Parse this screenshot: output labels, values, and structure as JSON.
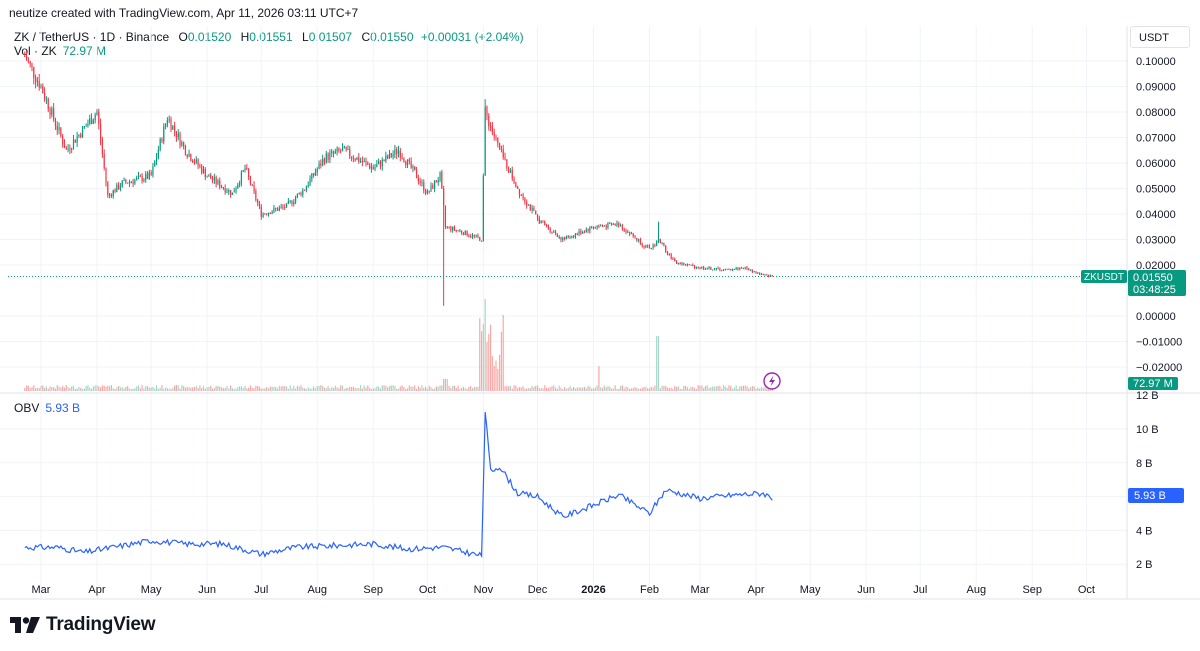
{
  "header": {
    "attribution": "neutize created with TradingView.com, Apr 11, 2026 03:11 UTC+7"
  },
  "legend": {
    "symbol": "ZK / TetherUS · 1D · Binance",
    "o_label": "O",
    "o_value": "0.01520",
    "h_label": "H",
    "h_value": "0.01551",
    "l_label": "L",
    "l_value": "0.01507",
    "c_label": "C",
    "c_value": "0.01550",
    "change": "+0.00031 (+2.04%)",
    "vol_label": "Vol · ZK",
    "vol_value": "72.97 M"
  },
  "obv": {
    "label": "OBV",
    "value": "5.93 B",
    "badge": "5.93 B"
  },
  "price_axis": {
    "currency": "USDT",
    "labels": [
      "0.10000",
      "0.09000",
      "0.08000",
      "0.07000",
      "0.06000",
      "0.05000",
      "0.04000",
      "0.03000",
      "0.02000",
      "0.00000",
      "−0.01000",
      "−0.02000"
    ],
    "ticker_badge": "ZKUSDT",
    "price_badge": "0.01550",
    "countdown": "03:48:25",
    "vol_badge": "72.97 M"
  },
  "obv_axis": {
    "labels": [
      "12 B",
      "10 B",
      "8 B",
      "6 B",
      "4 B",
      "2 B"
    ]
  },
  "time_axis": {
    "labels": [
      "Mar",
      "Apr",
      "May",
      "Jun",
      "Jul",
      "Aug",
      "Sep",
      "Oct",
      "Nov",
      "Dec",
      "2026",
      "Feb",
      "Mar",
      "Apr",
      "May",
      "Jun",
      "Jul",
      "Aug",
      "Sep",
      "Oct"
    ]
  },
  "footer": {
    "brand": "TradingView"
  },
  "colors": {
    "up": "#089981",
    "down": "#f23645",
    "obv": "#2962ff",
    "grid": "#f0f3fa"
  },
  "chart_data": {
    "type": "line",
    "series": [
      {
        "x": [
          "2025-02-20",
          "2025-03-01",
          "2025-03-15",
          "2025-04-01",
          "2025-04-07",
          "2025-04-15",
          "2025-05-01",
          "2025-05-10",
          "2025-05-20",
          "2025-06-01",
          "2025-06-15",
          "2025-06-22",
          "2025-07-01",
          "2025-07-15",
          "2025-07-25",
          "2025-08-05",
          "2025-08-15",
          "2025-09-01",
          "2025-09-15",
          "2025-09-25",
          "2025-10-01",
          "2025-10-08",
          "2025-10-10",
          "2025-10-11",
          "2025-10-20",
          "2025-10-31",
          "2025-11-02",
          "2025-11-10",
          "2025-11-20",
          "2025-12-01",
          "2025-12-15",
          "2026-01-01",
          "2026-01-15",
          "2026-02-01",
          "2026-02-06",
          "2026-02-15",
          "2026-03-01",
          "2026-03-15",
          "2026-03-25",
          "2026-04-05",
          "2026-04-10"
        ],
        "values": [
          0.102,
          0.09,
          0.065,
          0.08,
          0.047,
          0.052,
          0.055,
          0.078,
          0.065,
          0.055,
          0.048,
          0.058,
          0.04,
          0.043,
          0.05,
          0.062,
          0.065,
          0.058,
          0.065,
          0.055,
          0.048,
          0.055,
          0.042,
          0.035,
          0.033,
          0.03,
          0.08,
          0.065,
          0.05,
          0.038,
          0.03,
          0.035,
          0.036,
          0.026,
          0.03,
          0.021,
          0.019,
          0.018,
          0.019,
          0.016,
          0.0155
        ]
      },
      {
        "name": "OBV",
        "x": [
          "2025-02-20",
          "2025-03-10",
          "2025-03-25",
          "2025-04-10",
          "2025-05-01",
          "2025-05-20",
          "2025-06-10",
          "2025-07-01",
          "2025-07-20",
          "2025-08-10",
          "2025-09-01",
          "2025-09-20",
          "2025-10-10",
          "2025-10-31",
          "2025-11-02",
          "2025-11-05",
          "2025-11-10",
          "2025-11-20",
          "2025-12-01",
          "2025-12-15",
          "2026-01-01",
          "2026-01-15",
          "2026-02-01",
          "2026-02-10",
          "2026-03-01",
          "2026-03-20",
          "2026-04-05",
          "2026-04-10"
        ],
        "values": [
          3.0,
          3.0,
          2.7,
          3.0,
          3.4,
          3.2,
          3.2,
          2.6,
          3.0,
          3.1,
          3.2,
          2.9,
          3.0,
          2.5,
          11.0,
          7.5,
          7.8,
          6.2,
          6.0,
          4.8,
          5.5,
          6.1,
          5.0,
          6.4,
          5.9,
          6.1,
          6.2,
          5.93
        ]
      }
    ],
    "ylim": [
      -0.025,
      0.11
    ],
    "obv_ylim": [
      1.5,
      12.5
    ]
  }
}
